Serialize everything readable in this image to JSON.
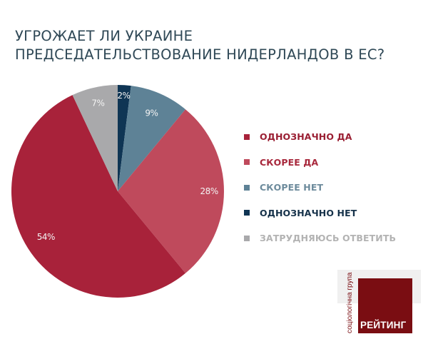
{
  "title": {
    "line1": "УГРОЖАЕТ ЛИ УКРАИНЕ",
    "line2": "ПРЕДСЕДАТЕЛЬСТВОВАНИЕ НИДЕРЛАНДОВ В ЕС?"
  },
  "chart_data": {
    "type": "pie",
    "title": "УГРОЖАЕТ ЛИ УКРАИНЕ ПРЕДСЕДАТЕЛЬСТВОВАНИЕ НИДЕРЛАНДОВ В ЕС?",
    "categories": [
      "ОДНОЗНАЧНО ДА",
      "СКОРЕЕ ДА",
      "СКОРЕЕ НЕТ",
      "ОДНОЗНАЧНО НЕТ",
      "ЗАТРУДНЯЮСЬ ОТВЕТИТЬ"
    ],
    "values": [
      54,
      28,
      9,
      2,
      7
    ],
    "labels": [
      "54%",
      "28%",
      "9%",
      "2%",
      "7%"
    ],
    "colors": [
      "#a8223a",
      "#bf4a5c",
      "#5e8296",
      "#0f3554",
      "#a9a9ab"
    ],
    "slice_order_clockwise_from_top": [
      "ОДНОЗНАЧНО НЕТ",
      "СКОРЕЕ НЕТ",
      "СКОРЕЕ ДА",
      "ОДНОЗНАЧНО ДА",
      "ЗАТРУДНЯЮСЬ ОТВЕТИТЬ"
    ],
    "legend_position": "right"
  },
  "legend": [
    {
      "label": "ОДНОЗНАЧНО ДА",
      "color": "#a8223a",
      "text_color": "#9a1f33"
    },
    {
      "label": "СКОРЕЕ ДА",
      "color": "#bf4a5c",
      "text_color": "#a8283c"
    },
    {
      "label": "СКОРЕЕ НЕТ",
      "color": "#5e8296",
      "text_color": "#6d8b9c"
    },
    {
      "label": "ОДНОЗНАЧНО НЕТ",
      "color": "#0f3554",
      "text_color": "#16324a"
    },
    {
      "label": "ЗАТРУДНЯЮСЬ ОТВЕТИТЬ",
      "color": "#a9a9ab",
      "text_color": "#b3b3b3"
    }
  ],
  "logo": {
    "name": "РЕЙТИНГ",
    "subtitle": "соціологічна група",
    "color": "#7a0d12"
  }
}
